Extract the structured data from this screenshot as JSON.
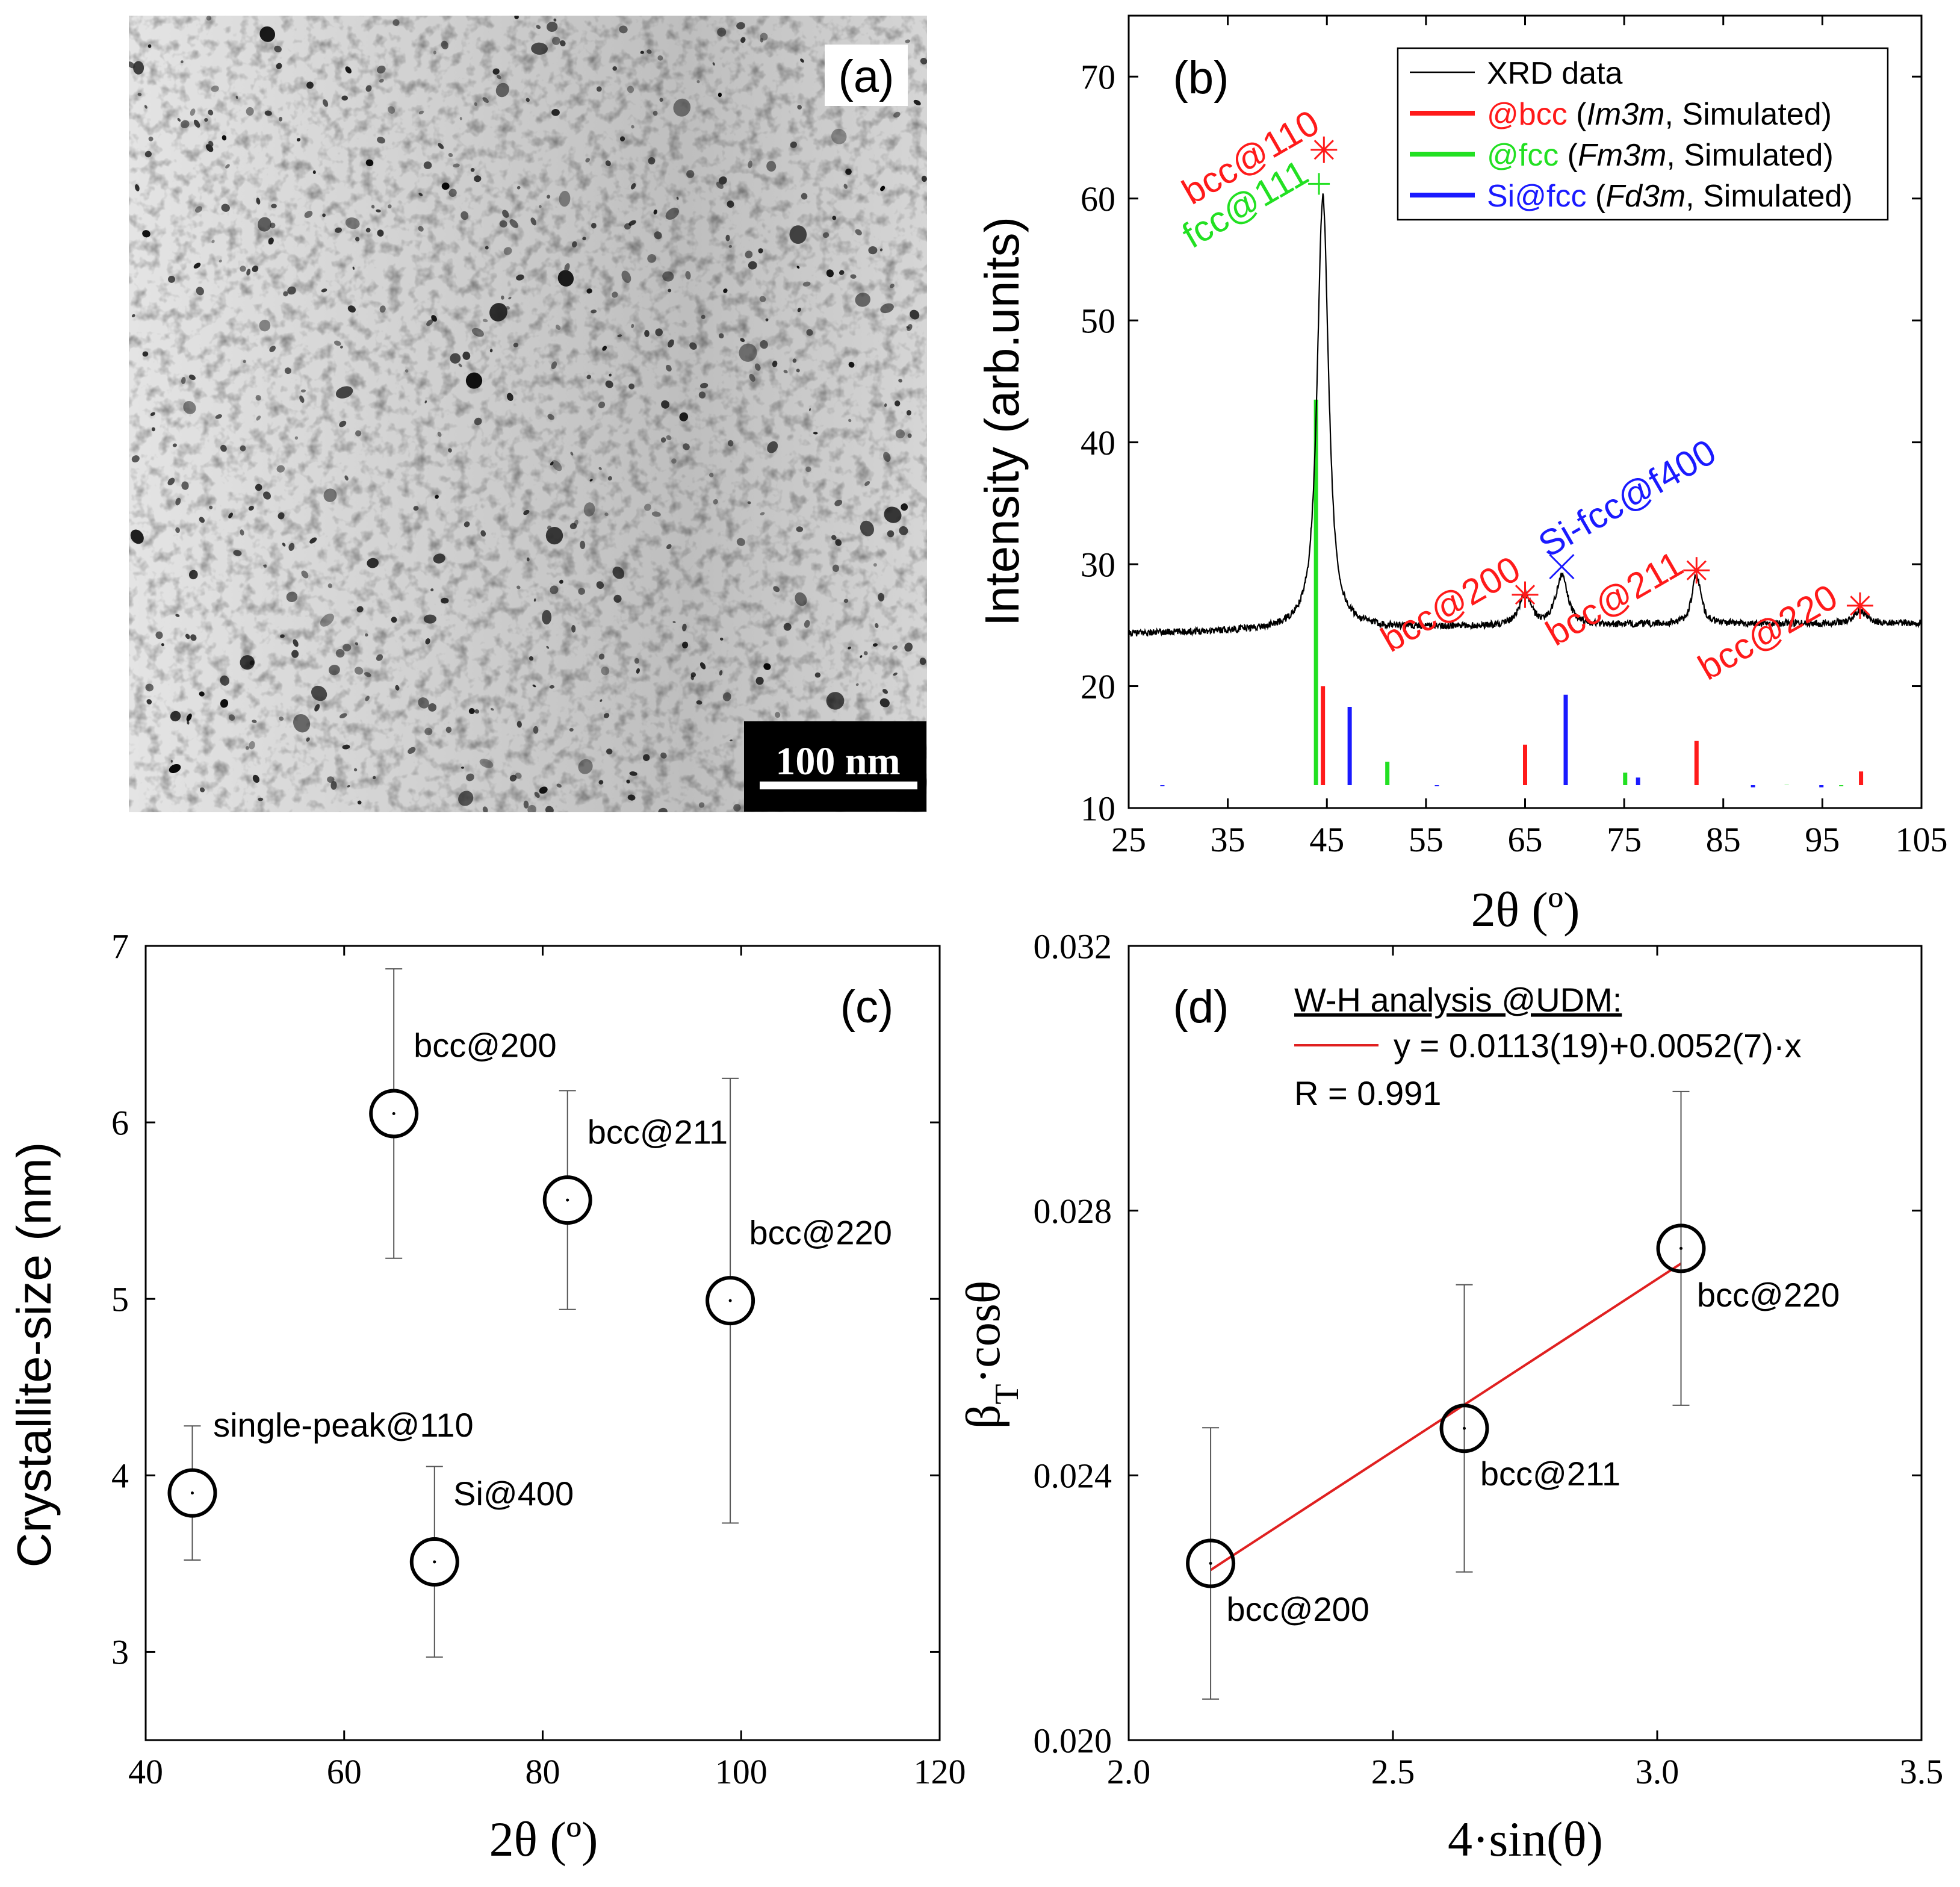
{
  "panels": {
    "a": {
      "label": "(a)",
      "scale_bar": "100 nm"
    },
    "b": {
      "label": "(b)"
    },
    "c": {
      "label": "(c)"
    },
    "d": {
      "label": "(d)"
    }
  },
  "colors": {
    "red": "#ff1a1a",
    "green": "#22e022",
    "blue": "#1a1aff",
    "black": "#000000",
    "fit_red": "#e02020"
  },
  "chart_data": [
    {
      "panel": "b",
      "type": "line",
      "xlabel": "2θ (º)",
      "ylabel": "Intensity (arb.units)",
      "xlim": [
        25,
        105
      ],
      "ylim": [
        10,
        75
      ],
      "xticks": [
        25,
        35,
        45,
        55,
        65,
        75,
        85,
        95,
        105
      ],
      "yticks": [
        10,
        20,
        30,
        40,
        50,
        60,
        70
      ],
      "legend": {
        "position": "top-right",
        "entries": [
          {
            "color": "#000000",
            "text": "XRD data"
          },
          {
            "color": "#ff1a1a",
            "prefix": "@bcc",
            "group": "Im3m",
            "suffix": ", Simulated)"
          },
          {
            "color": "#22e022",
            "prefix": "@fcc",
            "group": "Fm3m",
            "suffix": ", Simulated)"
          },
          {
            "color": "#1a1aff",
            "prefix": "Si@fcc",
            "group": "Fd3m",
            "suffix": ", Simulated)"
          }
        ]
      },
      "xrd_baseline": 24,
      "xrd_peaks": [
        {
          "center": 44.6,
          "height": 35.5,
          "width": 0.75
        },
        {
          "center": 65.0,
          "height": 2.5,
          "width": 0.8
        },
        {
          "center": 68.7,
          "height": 4.0,
          "width": 0.8
        },
        {
          "center": 82.3,
          "height": 4.0,
          "width": 0.6
        },
        {
          "center": 98.8,
          "height": 1.0,
          "width": 0.8
        }
      ],
      "sticks": {
        "bcc": [
          {
            "x": 44.6,
            "y": 20.0
          },
          {
            "x": 65.0,
            "y": 15.2
          },
          {
            "x": 82.3,
            "y": 15.5
          },
          {
            "x": 98.9,
            "y": 13.0
          }
        ],
        "fcc": [
          {
            "x": 43.9,
            "y": 43.5
          },
          {
            "x": 51.1,
            "y": 13.8
          },
          {
            "x": 75.1,
            "y": 12.9
          },
          {
            "x": 91.4,
            "y": 11.9
          },
          {
            "x": 96.9,
            "y": 11.8
          }
        ],
        "si": [
          {
            "x": 28.4,
            "y": 11.8
          },
          {
            "x": 47.3,
            "y": 18.3
          },
          {
            "x": 56.1,
            "y": 11.8
          },
          {
            "x": 69.1,
            "y": 19.3
          },
          {
            "x": 76.4,
            "y": 12.5
          },
          {
            "x": 88.0,
            "y": 11.7
          },
          {
            "x": 94.9,
            "y": 11.7
          }
        ]
      },
      "markers": [
        {
          "symbol": "asterisk",
          "x": 44.7,
          "y": 64.0,
          "color": "#ff1a1a"
        },
        {
          "symbol": "plus",
          "x": 44.2,
          "y": 61.2,
          "color": "#22e022"
        },
        {
          "symbol": "asterisk",
          "x": 65.0,
          "y": 27.5,
          "color": "#ff1a1a"
        },
        {
          "symbol": "cross",
          "x": 68.7,
          "y": 29.8,
          "color": "#1a1aff"
        },
        {
          "symbol": "asterisk",
          "x": 82.3,
          "y": 29.5,
          "color": "#ff1a1a"
        },
        {
          "symbol": "asterisk",
          "x": 98.8,
          "y": 26.6,
          "color": "#ff1a1a"
        }
      ],
      "annotations": [
        {
          "text": "bcc@110",
          "x": 44.5,
          "y": 65.6,
          "color": "#ff1a1a"
        },
        {
          "text": "fcc@111",
          "x": 43.4,
          "y": 61.5,
          "color": "#22e022"
        },
        {
          "text": "bcc@200",
          "x": 64.8,
          "y": 29.0,
          "color": "#ff1a1a"
        },
        {
          "text": "Si-fcc@f400",
          "x": 67.3,
          "y": 30.5,
          "color": "#1a1aff"
        },
        {
          "text": "bcc@211",
          "x": 81.2,
          "y": 29.4,
          "color": "#ff1a1a"
        },
        {
          "text": "bcc@220",
          "x": 96.8,
          "y": 26.7,
          "color": "#ff1a1a"
        }
      ]
    },
    {
      "panel": "c",
      "type": "scatter",
      "xlabel": "2θ (º)",
      "ylabel": "Crystallite-size (nm)",
      "xlim": [
        40,
        120
      ],
      "ylim": [
        2.5,
        7
      ],
      "xticks": [
        40,
        60,
        80,
        100,
        120
      ],
      "yticks": [
        3,
        4,
        5,
        6,
        7
      ],
      "points": [
        {
          "label": "single-peak@110",
          "x": 44.7,
          "y": 3.9,
          "err": 0.38,
          "lx": 46.8,
          "ly": 4.22
        },
        {
          "label": "bcc@200",
          "x": 65.0,
          "y": 6.05,
          "err": 0.82,
          "lx": 67.0,
          "ly": 6.37
        },
        {
          "label": "Si@400",
          "x": 69.1,
          "y": 3.51,
          "err": 0.54,
          "lx": 71.0,
          "ly": 3.83
        },
        {
          "label": "bcc@211",
          "x": 82.5,
          "y": 5.56,
          "err": 0.62,
          "lx": 84.5,
          "ly": 5.88
        },
        {
          "label": "bcc@220",
          "x": 98.9,
          "y": 4.99,
          "err": 1.26,
          "lx": 100.8,
          "ly": 5.31
        }
      ]
    },
    {
      "panel": "d",
      "type": "scatter",
      "xlabel": "4·sin(θ)",
      "ylabel": "β",
      "ylabel_sub": "T",
      "ylabel_tail": "·cosθ",
      "xlim": [
        2.0,
        3.5
      ],
      "ylim": [
        0.02,
        0.032
      ],
      "xticks": [
        2.0,
        2.5,
        3.0,
        3.5
      ],
      "xtick_labels": [
        "2.0",
        "2.5",
        "3.0",
        "3.5"
      ],
      "yticks": [
        0.02,
        0.024,
        0.028,
        0.032
      ],
      "ytick_labels": [
        "0.020",
        "0.024",
        "0.028",
        "0.032"
      ],
      "points": [
        {
          "label": "bcc@200",
          "x": 2.155,
          "y": 0.02267,
          "err": 0.00205,
          "lx": 2.185,
          "ly": 0.0218
        },
        {
          "label": "bcc@211",
          "x": 2.635,
          "y": 0.02471,
          "err": 0.00217,
          "lx": 2.665,
          "ly": 0.02385
        },
        {
          "label": "bcc@220",
          "x": 3.045,
          "y": 0.02743,
          "err": 0.00237,
          "lx": 3.075,
          "ly": 0.02655
        }
      ],
      "fit": {
        "x0": 2.155,
        "y0": 0.02257,
        "x1": 3.045,
        "y1": 0.0272
      },
      "legend": {
        "title": "W-H analysis @UDM:",
        "equation": "y = 0.0113(19)+0.0052(7)·x",
        "r": "R = 0.991"
      }
    }
  ]
}
